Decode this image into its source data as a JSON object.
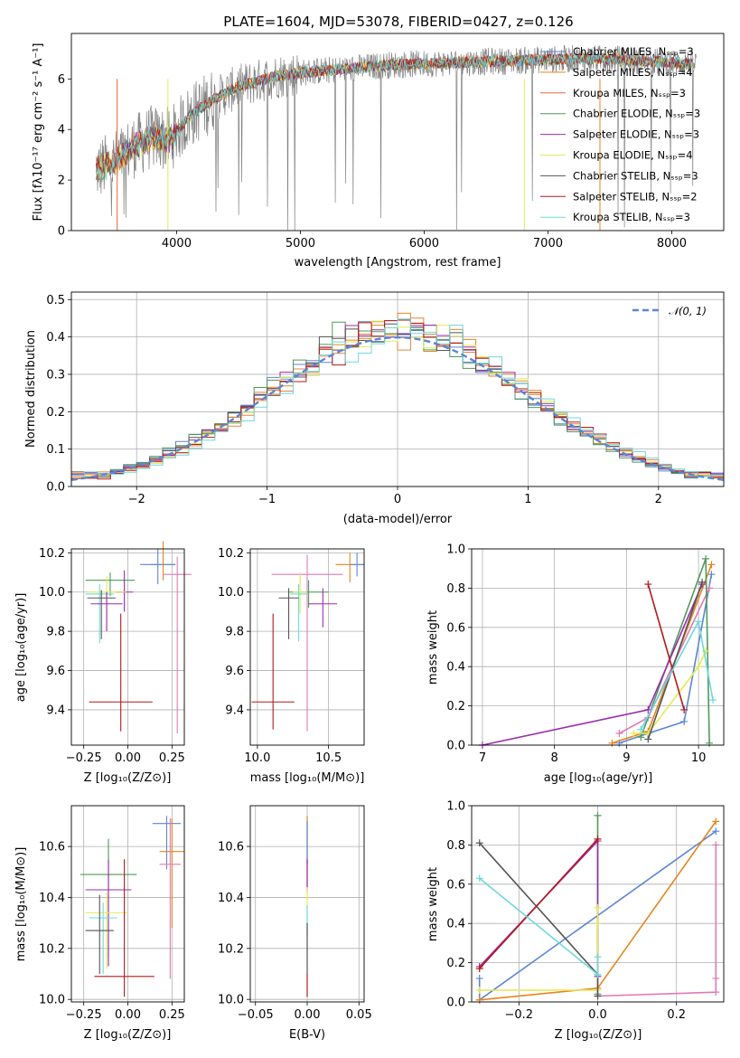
{
  "chart_data": [
    {
      "type": "line",
      "title": "PLATE=1604, MJD=53078, FIBERID=0427, z=0.126",
      "xlabel": "wavelength [Angstrom, rest frame]",
      "ylabel": "Flux [fλ10⁻¹⁷ erg cm⁻² s⁻¹ A⁻¹]",
      "xlim": [
        3150,
        8420
      ],
      "ylim": [
        0,
        7.8
      ],
      "xticks": [
        4000,
        5000,
        6000,
        7000,
        8000
      ],
      "yticks": [
        0,
        2,
        4,
        6
      ],
      "grid": false,
      "legend_position": "right",
      "continuum": {
        "x": [
          3350,
          3500,
          3650,
          3800,
          3950,
          4100,
          4300,
          4500,
          4800,
          5100,
          5400,
          5700,
          6000,
          6300,
          6600,
          6900,
          7200,
          7500,
          7800,
          8000,
          8200
        ],
        "y": [
          2.4,
          2.7,
          3.3,
          3.7,
          3.6,
          4.5,
          5.2,
          5.7,
          6.1,
          6.3,
          6.4,
          6.55,
          6.6,
          6.65,
          6.7,
          6.75,
          6.8,
          6.8,
          6.7,
          6.65,
          6.6
        ]
      },
      "series": [
        {
          "name": "Chabrier MILES, N_SSP=3",
          "color": "#5b86d6"
        },
        {
          "name": "Salpeter MILES, N_SSP=4",
          "color": "#e7851c"
        },
        {
          "name": "Kroupa MILES, N_SSP=3",
          "color": "#e8663c"
        },
        {
          "name": "Chabrier ELODIE, N_SSP=3",
          "color": "#4f9a5a"
        },
        {
          "name": "Salpeter ELODIE, N_SSP=3",
          "color": "#9b2bb0"
        },
        {
          "name": "Kroupa ELODIE, N_SSP=4",
          "color": "#e3ea55"
        },
        {
          "name": "Chabrier STELIB, N_SSP=3",
          "color": "#555555"
        },
        {
          "name": "Salpeter STELIB, N_SSP=2",
          "color": "#b21a1a"
        },
        {
          "name": "Kroupa STELIB, N_SSP=3",
          "color": "#6ed8dd"
        }
      ]
    },
    {
      "type": "histogram",
      "xlabel": "(data-model)/error",
      "ylabel": "Normed distribution",
      "xlim": [
        -2.5,
        2.5
      ],
      "ylim": [
        0,
        0.52
      ],
      "xticks": [
        -2,
        -1,
        0,
        1,
        2
      ],
      "yticks": [
        0.0,
        0.1,
        0.2,
        0.3,
        0.4,
        0.5
      ],
      "grid": true,
      "legend": "𝒩(0, 1)",
      "legend_position": "top-right",
      "bin_width": 0.1,
      "colors": [
        "#5b86d6",
        "#e7851c",
        "#e8863c",
        "#4f9a5a",
        "#9b2bb0",
        "#e3ea55",
        "#555555",
        "#b21a1a",
        "#6ed8dd"
      ]
    },
    {
      "type": "scatter",
      "xlabel": "Z [log₁₀(Z/Z⊙)]",
      "ylabel": "age [log₁₀(age/yr)]",
      "xlim": [
        -0.32,
        0.32
      ],
      "ylim": [
        9.22,
        10.22
      ],
      "xticks": [
        -0.25,
        0.0,
        0.25
      ],
      "xticklabels": [
        "−0.25",
        "0.00",
        "0.25"
      ],
      "yticks": [
        9.4,
        9.6,
        9.8,
        10.0,
        10.2
      ],
      "grid": true,
      "points": [
        {
          "x": 0.2,
          "y": 10.14,
          "xerr": 0.07,
          "yerr": [
            0.08,
            0.12
          ],
          "color": "#e7851c"
        },
        {
          "x": 0.17,
          "y": 10.14,
          "xerr": 0.1,
          "yerr": [
            0.1,
            0.08
          ],
          "color": "#5b86d6"
        },
        {
          "x": 0.28,
          "y": 10.09,
          "xerr": 0.08,
          "yerr": [
            0.81,
            0.09
          ],
          "color": "#e07ab5"
        },
        {
          "x": -0.1,
          "y": 10.06,
          "xerr": 0.14,
          "yerr": [
            0.08,
            0.04
          ],
          "color": "#4f9a5a"
        },
        {
          "x": -0.02,
          "y": 10.0,
          "xerr": 0.05,
          "yerr": [
            0.1,
            0.11
          ],
          "color": "#9b2bb0"
        },
        {
          "x": -0.12,
          "y": 10.0,
          "xerr": 0.11,
          "yerr": [
            0.14,
            0.08
          ],
          "color": "#e3ea55"
        },
        {
          "x": -0.16,
          "y": 9.99,
          "xerr": 0.08,
          "yerr": [
            0.25,
            0.05
          ],
          "color": "#6ed8dd"
        },
        {
          "x": -0.15,
          "y": 9.97,
          "xerr": 0.08,
          "yerr": [
            0.21,
            0.04
          ],
          "color": "#555555"
        },
        {
          "x": -0.12,
          "y": 9.94,
          "xerr": 0.09,
          "yerr": [
            0.14,
            0.06
          ],
          "color": "#9b2bb0"
        },
        {
          "x": -0.04,
          "y": 9.44,
          "xerr": 0.18,
          "yerr": [
            0.15,
            0.45
          ],
          "color": "#b21a1a"
        }
      ]
    },
    {
      "type": "scatter",
      "xlabel": "mass [log₁₀(M/M⊙)]",
      "ylabel": "",
      "xlim": [
        9.95,
        10.75
      ],
      "ylim": [
        9.22,
        10.22
      ],
      "xticks": [
        10.0,
        10.5
      ],
      "xticklabels": [
        "10.0",
        "10.5"
      ],
      "yticks": [
        9.4,
        9.6,
        9.8,
        10.0,
        10.2
      ],
      "grid": true,
      "points": [
        {
          "x": 10.65,
          "y": 10.14,
          "xerr": 0.1,
          "yerr": [
            0.09,
            0.06
          ],
          "color": "#e7851c"
        },
        {
          "x": 10.7,
          "y": 10.14,
          "xerr": 0.05,
          "yerr": [
            0.06,
            0.06
          ],
          "color": "#5b86d6"
        },
        {
          "x": 10.35,
          "y": 10.09,
          "xerr": 0.25,
          "yerr": [
            0.8,
            0.1
          ],
          "color": "#e07ab5"
        },
        {
          "x": 10.36,
          "y": 10.0,
          "xerr": 0.14,
          "yerr": [
            0.08,
            0.06
          ],
          "color": "#4f9a5a"
        },
        {
          "x": 10.46,
          "y": 9.94,
          "xerr": 0.1,
          "yerr": [
            0.12,
            0.08
          ],
          "color": "#9b2bb0"
        },
        {
          "x": 10.3,
          "y": 10.0,
          "xerr": 0.05,
          "yerr": [
            0.11,
            0.1
          ],
          "color": "#e3ea55"
        },
        {
          "x": 10.29,
          "y": 9.99,
          "xerr": 0.06,
          "yerr": [
            0.24,
            0.05
          ],
          "color": "#6ed8dd"
        },
        {
          "x": 10.22,
          "y": 9.97,
          "xerr": 0.07,
          "yerr": [
            0.21,
            0.05
          ],
          "color": "#555555"
        },
        {
          "x": 10.11,
          "y": 9.44,
          "xerr": 0.15,
          "yerr": [
            0.14,
            0.45
          ],
          "color": "#b21a1a"
        }
      ]
    },
    {
      "type": "line",
      "xlabel": "age [log₁₀(age/yr)]",
      "ylabel": "mass weight",
      "xlim": [
        6.85,
        10.35
      ],
      "ylim": [
        0,
        1.0
      ],
      "xticks": [
        7,
        8,
        9,
        10
      ],
      "yticks": [
        0.0,
        0.2,
        0.4,
        0.6,
        0.8,
        1.0
      ],
      "grid": true,
      "series": [
        {
          "color": "#5b86d6",
          "x": [
            8.9,
            9.3,
            9.8,
            10.18
          ],
          "y": [
            0.01,
            0.06,
            0.12,
            0.87
          ]
        },
        {
          "color": "#e7851c",
          "x": [
            8.8,
            9.3,
            10.18
          ],
          "y": [
            0.01,
            0.07,
            0.92
          ]
        },
        {
          "color": "#e07ab5",
          "x": [
            8.9,
            9.3,
            10.15
          ],
          "y": [
            0.06,
            0.14,
            0.8
          ]
        },
        {
          "color": "#4f9a5a",
          "x": [
            9.2,
            10.1,
            10.15
          ],
          "y": [
            0.04,
            0.95,
            0.01
          ]
        },
        {
          "color": "#9b2bb0",
          "x": [
            7.0,
            9.3,
            10.05
          ],
          "y": [
            0.0,
            0.18,
            0.82
          ]
        },
        {
          "color": "#e3ea55",
          "x": [
            9.1,
            9.3,
            10.0,
            10.1
          ],
          "y": [
            0.06,
            0.06,
            0.4,
            0.48
          ]
        },
        {
          "color": "#555555",
          "x": [
            9.3,
            10.05
          ],
          "y": [
            0.03,
            0.83
          ]
        },
        {
          "color": "#b21a1a",
          "x": [
            9.3,
            9.8
          ],
          "y": [
            0.82,
            0.18
          ]
        },
        {
          "color": "#6ed8dd",
          "x": [
            9.2,
            10.0,
            10.2
          ],
          "y": [
            0.08,
            0.63,
            0.23
          ]
        }
      ]
    },
    {
      "type": "scatter",
      "xlabel": "Z [log₁₀(Z/Z⊙)]",
      "ylabel": "mass [log₁₀(M/M⊙)]",
      "xlim": [
        -0.32,
        0.32
      ],
      "ylim": [
        9.99,
        10.76
      ],
      "xticks": [
        -0.25,
        0.0,
        0.25
      ],
      "xticklabels": [
        "−0.25",
        "0.00",
        "0.25"
      ],
      "yticks": [
        10.0,
        10.2,
        10.4,
        10.6
      ],
      "grid": true,
      "points": [
        {
          "x": 0.22,
          "y": 10.69,
          "xerr": 0.08,
          "yerr": [
            0.18,
            0.03
          ],
          "color": "#5b86d6"
        },
        {
          "x": 0.25,
          "y": 10.58,
          "xerr": 0.07,
          "yerr": [
            0.3,
            0.13
          ],
          "color": "#e7851c"
        },
        {
          "x": 0.24,
          "y": 10.53,
          "xerr": 0.06,
          "yerr": [
            0.45,
            0.18
          ],
          "color": "#e07ab5"
        },
        {
          "x": -0.11,
          "y": 10.49,
          "xerr": 0.16,
          "yerr": [
            0.33,
            0.14
          ],
          "color": "#4f9a5a"
        },
        {
          "x": -0.11,
          "y": 10.43,
          "xerr": 0.13,
          "yerr": [
            0.3,
            0.12
          ],
          "color": "#9b2bb0"
        },
        {
          "x": -0.12,
          "y": 10.34,
          "xerr": 0.12,
          "yerr": [
            0.22,
            0.08
          ],
          "color": "#e3ea55"
        },
        {
          "x": -0.14,
          "y": 10.32,
          "xerr": 0.08,
          "yerr": [
            0.22,
            0.06
          ],
          "color": "#6ed8dd"
        },
        {
          "x": -0.16,
          "y": 10.27,
          "xerr": 0.08,
          "yerr": [
            0.17,
            0.14
          ],
          "color": "#555555"
        },
        {
          "x": -0.02,
          "y": 10.09,
          "xerr": 0.17,
          "yerr": [
            0.08,
            0.46
          ],
          "color": "#b21a1a"
        }
      ]
    },
    {
      "type": "line",
      "xlabel": "E(B-V)",
      "ylabel": "",
      "xlim": [
        -0.055,
        0.055
      ],
      "ylim": [
        9.99,
        10.76
      ],
      "xticks": [
        -0.05,
        0.0,
        0.05
      ],
      "xticklabels": [
        "−0.05",
        "0.00",
        "0.05"
      ],
      "yticks": [
        10.0,
        10.2,
        10.4,
        10.6
      ],
      "grid": true,
      "segments": [
        {
          "color": "#e7851c",
          "y": [
            10.44,
            10.72
          ]
        },
        {
          "color": "#5b86d6",
          "y": [
            10.53,
            10.7
          ]
        },
        {
          "color": "#9b2bb0",
          "y": [
            10.42,
            10.55
          ]
        },
        {
          "color": "#e3ea55",
          "y": [
            10.36,
            10.44
          ]
        },
        {
          "color": "#6ed8dd",
          "y": [
            10.25,
            10.37
          ]
        },
        {
          "color": "#555555",
          "y": [
            10.1,
            10.3
          ]
        },
        {
          "color": "#b21a1a",
          "y": [
            10.01,
            10.1
          ]
        }
      ]
    },
    {
      "type": "line",
      "xlabel": "Z [log₁₀(Z/Z⊙)]",
      "ylabel": "mass weight",
      "xlim": [
        -0.32,
        0.32
      ],
      "ylim": [
        0,
        1.0
      ],
      "xticks": [
        -0.2,
        0.0,
        0.2
      ],
      "xticklabels": [
        "−0.2",
        "0.0",
        "0.2"
      ],
      "yticks": [
        0.0,
        0.2,
        0.4,
        0.6,
        0.8,
        1.0
      ],
      "grid": true,
      "series": [
        {
          "color": "#5b86d6",
          "x": [
            -0.3,
            -0.3,
            0.3
          ],
          "y": [
            0.12,
            0.01,
            0.87
          ]
        },
        {
          "color": "#e7851c",
          "x": [
            -0.3,
            0.0,
            0.3
          ],
          "y": [
            0.01,
            0.07,
            0.92
          ]
        },
        {
          "color": "#e07ab5",
          "x": [
            0.0,
            0.3,
            0.3,
            0.3
          ],
          "y": [
            0.03,
            0.05,
            0.12,
            0.8
          ]
        },
        {
          "color": "#4f9a5a",
          "x": [
            0.0,
            0.0
          ],
          "y": [
            0.95,
            0.04
          ]
        },
        {
          "color": "#9b2bb0",
          "x": [
            -0.3,
            0.0,
            0.0
          ],
          "y": [
            0.18,
            0.82,
            0.13
          ]
        },
        {
          "color": "#e3ea55",
          "x": [
            -0.3,
            0.0,
            0.0,
            0.0
          ],
          "y": [
            0.06,
            0.06,
            0.4,
            0.48
          ]
        },
        {
          "color": "#555555",
          "x": [
            -0.3,
            0.0,
            0.0
          ],
          "y": [
            0.81,
            0.14,
            0.03
          ]
        },
        {
          "color": "#b21a1a",
          "x": [
            -0.3,
            0.0
          ],
          "y": [
            0.17,
            0.83
          ]
        },
        {
          "color": "#6ed8dd",
          "x": [
            -0.3,
            0.0,
            0.0
          ],
          "y": [
            0.63,
            0.14,
            0.23
          ]
        }
      ]
    }
  ]
}
